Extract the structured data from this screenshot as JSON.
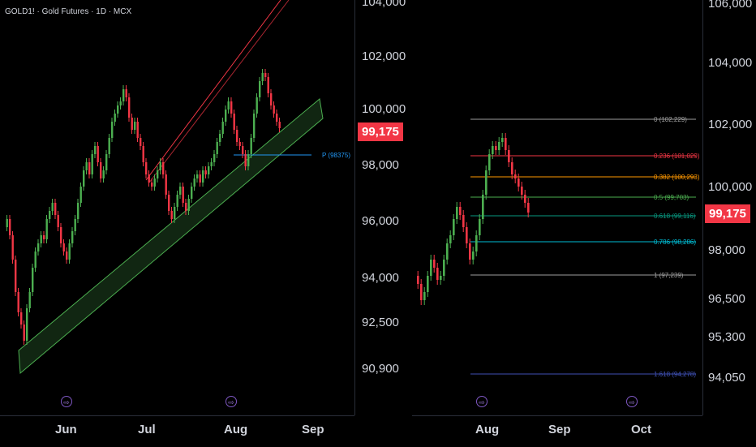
{
  "header": {
    "symbol_title": "GOLD1! · Gold Futures · 1D · MCX"
  },
  "left_chart": {
    "price_axis": [
      "104,000",
      "102,000",
      "100,000",
      "98,000",
      "96,000",
      "94,000",
      "92,500",
      "90,900"
    ],
    "current_price": "99,175",
    "time_axis": [
      "Jun",
      "Jul",
      "Aug",
      "Sep"
    ],
    "horizontal_line_label": "P (98375)"
  },
  "right_chart": {
    "price_axis": [
      "106,000",
      "104,000",
      "102,000",
      "100,000",
      "98,000",
      "96,500",
      "95,300",
      "94,050"
    ],
    "current_price": "99,175",
    "time_axis": [
      "Aug",
      "Sep",
      "Oct"
    ],
    "fib_levels": [
      {
        "label": "0 (102,229)",
        "color": "#9e9e9e"
      },
      {
        "label": "0.236 (101,029)",
        "color": "#f23645"
      },
      {
        "label": "0.382 (100,293)",
        "color": "#ff9800"
      },
      {
        "label": "0.5 (99,703)",
        "color": "#4caf50"
      },
      {
        "label": "0.618 (99,116)",
        "color": "#089981"
      },
      {
        "label": "0.786 (98,286)",
        "color": "#00bcd4"
      },
      {
        "label": "1 (97,239)",
        "color": "#9e9e9e"
      },
      {
        "label": "1.618 (94,278)",
        "color": "#3f51b5"
      }
    ]
  },
  "icons": {
    "replay": "replay-arrow-icon"
  },
  "colors": {
    "bull": "#4caf50",
    "bear": "#f23645",
    "channel": "#4caf50",
    "trend_line": "#f23645"
  }
}
